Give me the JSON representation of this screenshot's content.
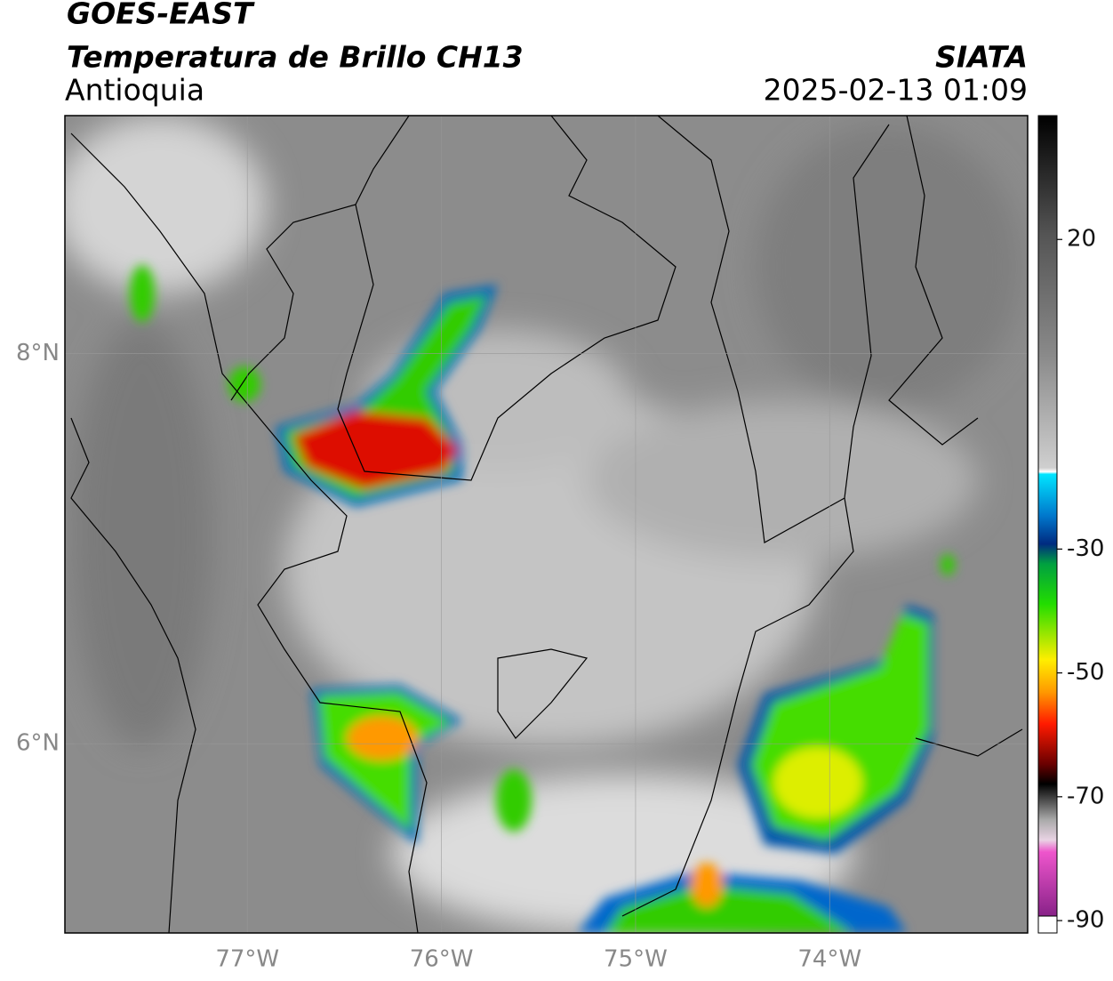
{
  "header": {
    "title": "GOES-EAST",
    "subtitle": "Temperatura de Brillo CH13",
    "region": "Antioquia",
    "source": "SIATA",
    "timestamp": "2025-02-13 01:09"
  },
  "map": {
    "xlim": [
      -77.94,
      -72.98
    ],
    "ylim": [
      5.03,
      9.22
    ],
    "xticks": [
      {
        "value": -77,
        "label": "77°W"
      },
      {
        "value": -76,
        "label": "76°W"
      },
      {
        "value": -75,
        "label": "75°W"
      },
      {
        "value": -74,
        "label": "74°W"
      }
    ],
    "yticks": [
      {
        "value": 8,
        "label": "8°N"
      },
      {
        "value": 6,
        "label": "6°N"
      }
    ],
    "grid": true
  },
  "colorbar": {
    "lim": [
      -92,
      40
    ],
    "ticks": [
      20,
      -30,
      -50,
      -70,
      -90
    ]
  }
}
